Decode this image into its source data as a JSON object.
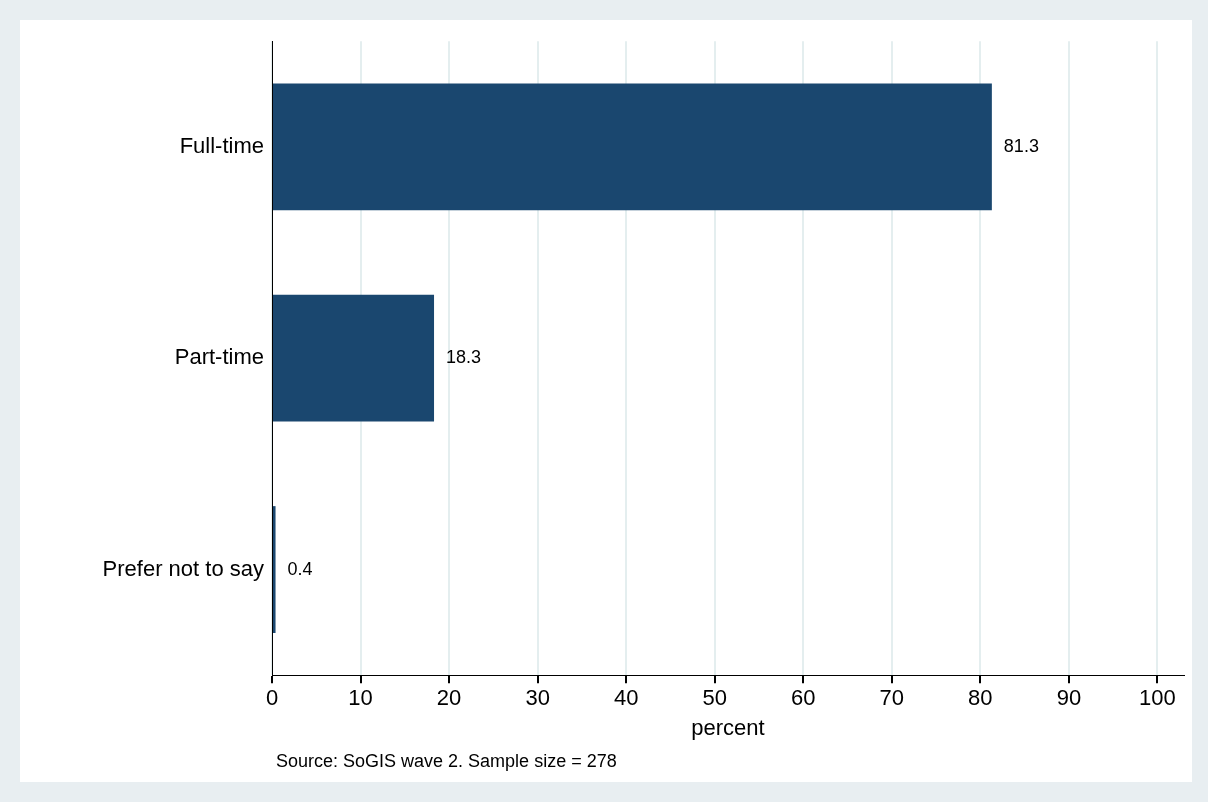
{
  "chart_data": {
    "type": "bar",
    "orientation": "horizontal",
    "categories": [
      "Full-time",
      "Part-time",
      "Prefer not to say"
    ],
    "values": [
      81.3,
      18.3,
      0.4
    ],
    "color": "#1a476f",
    "data_labels": true,
    "xlim": [
      0,
      103
    ],
    "xticks": [
      0,
      10,
      20,
      30,
      40,
      50,
      60,
      70,
      80,
      90,
      100
    ],
    "xlabel": "percent",
    "grid": "x",
    "legend": false,
    "annotations": [
      "Source: SoGIS wave 2. Sample size = 278"
    ]
  }
}
